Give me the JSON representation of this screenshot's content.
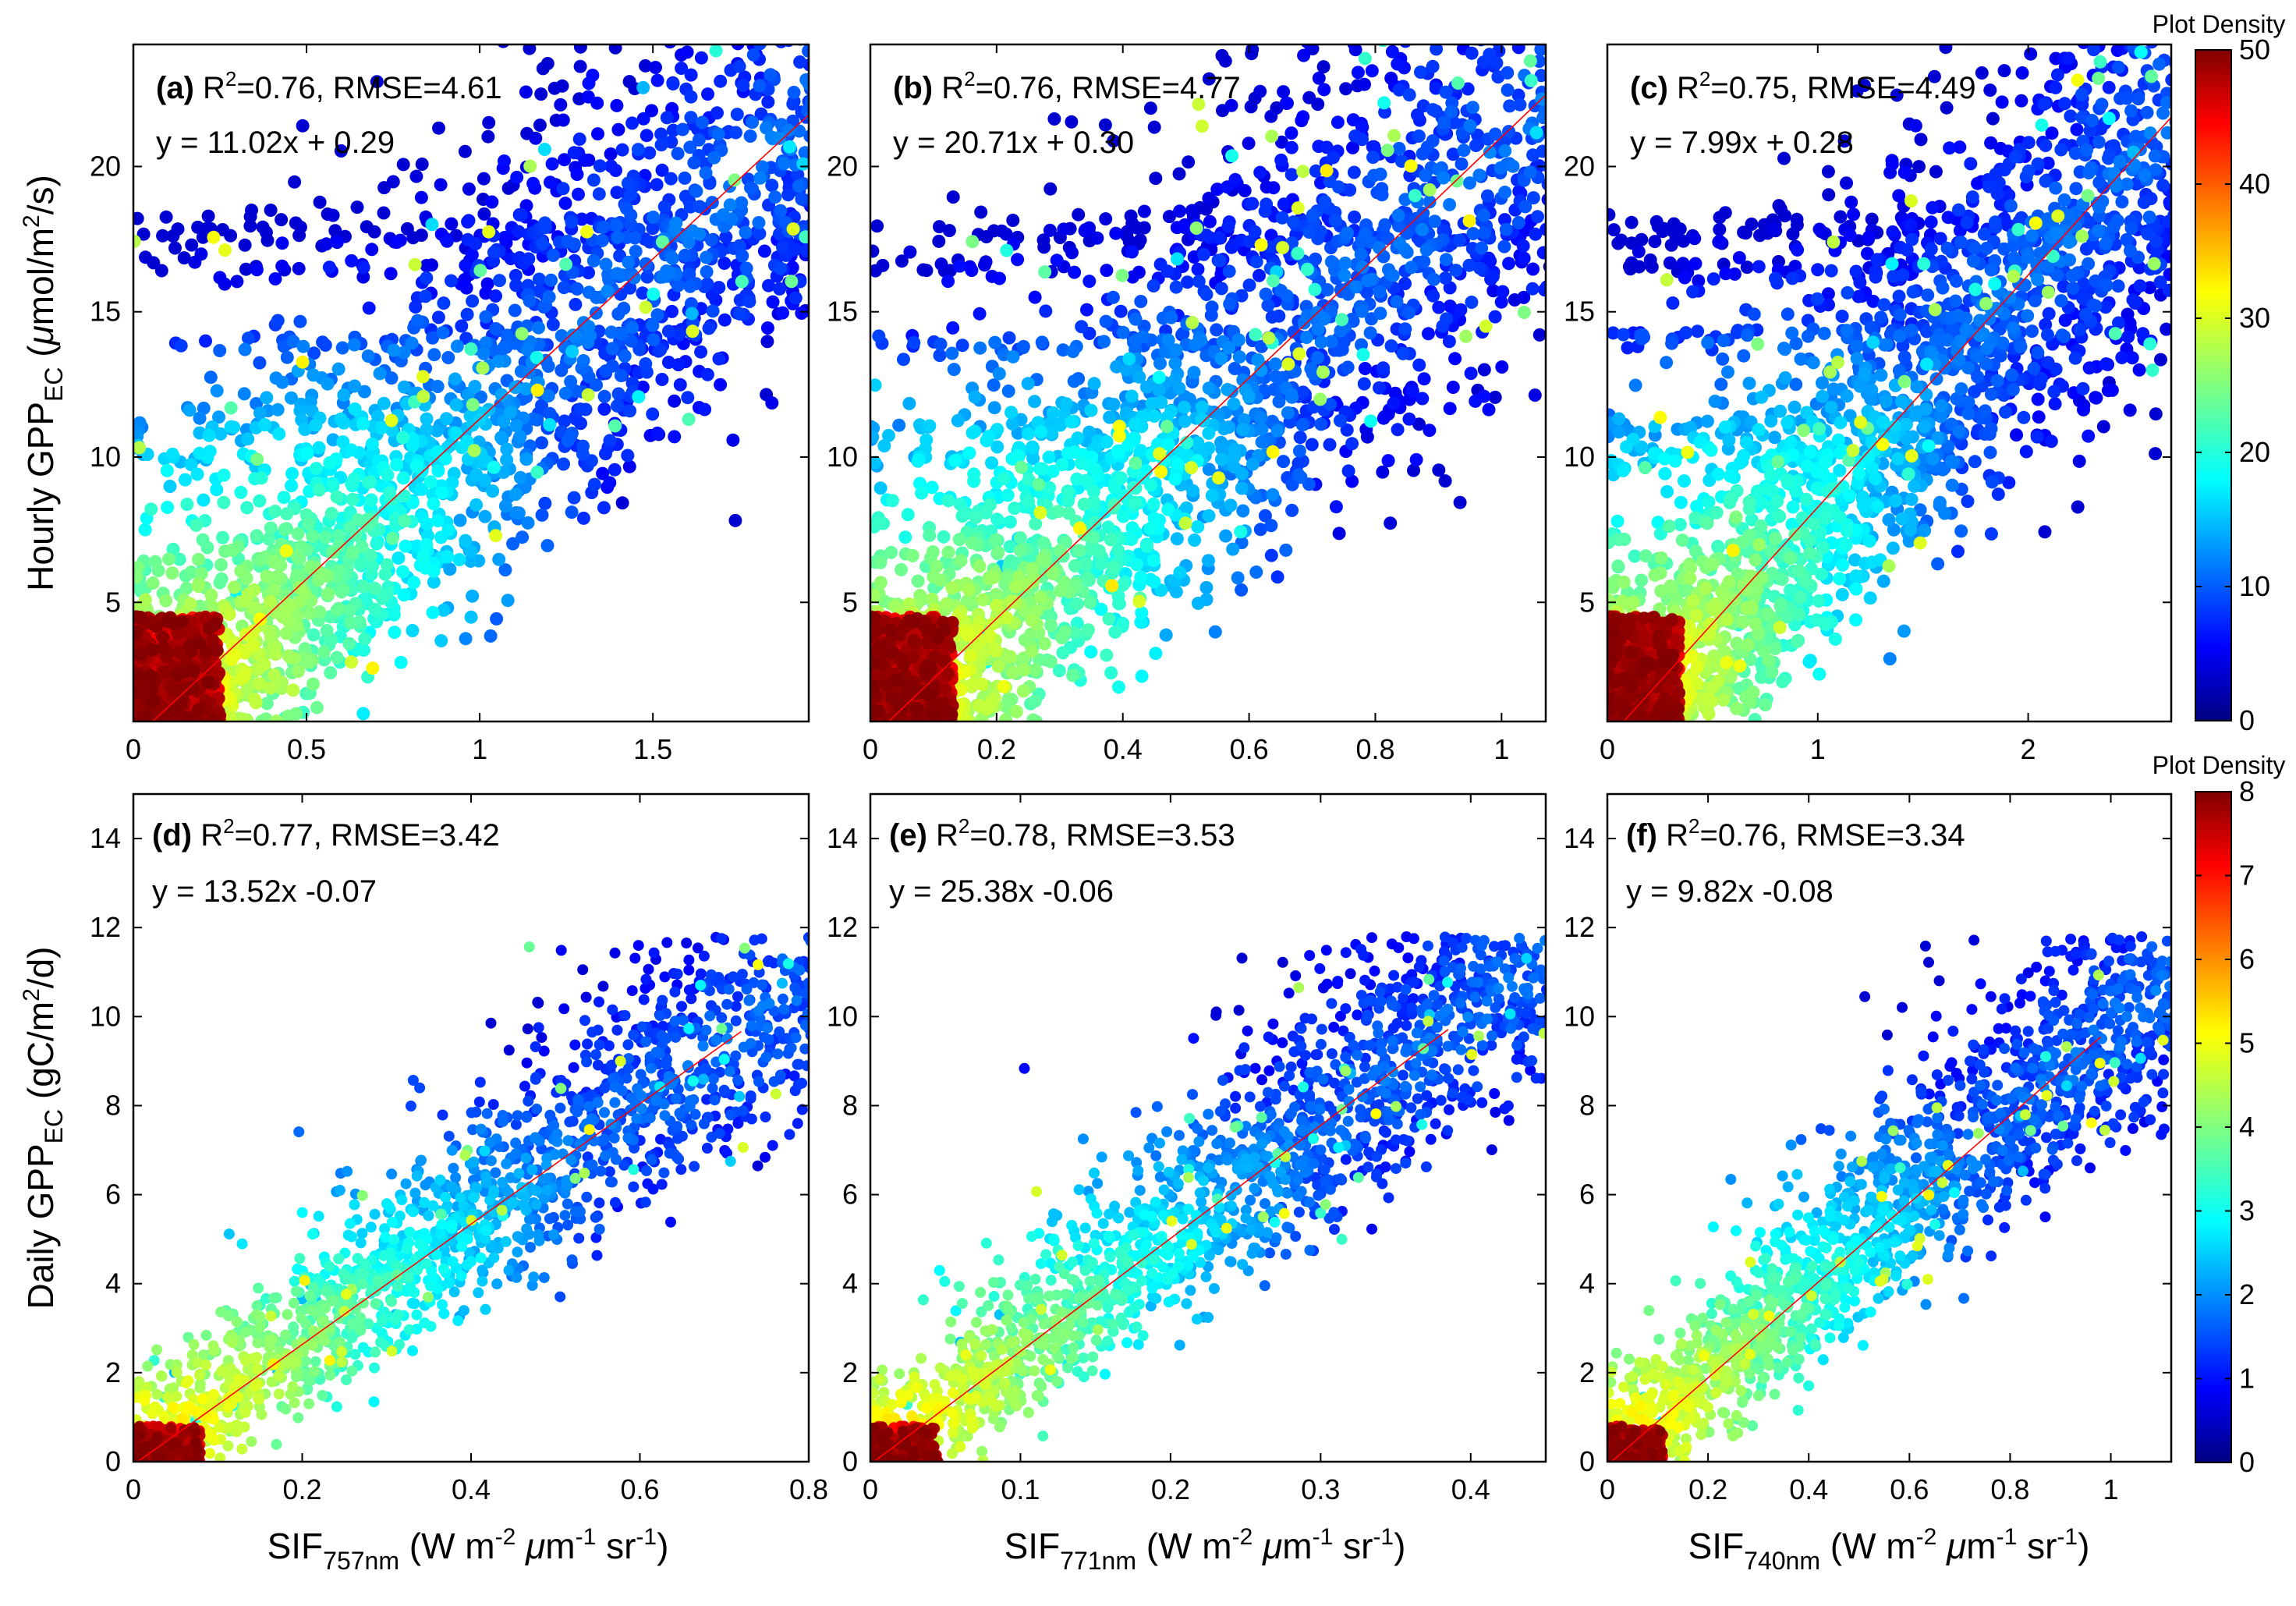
{
  "figure_labels": {
    "colorbar_title": "Plot Density",
    "y_hourly": {
      "pre": "Hourly GPP",
      "sub": "EC",
      "post1": " (",
      "mu": "μ",
      "post2": "mol/m",
      "sup": "2",
      "post3": "/s)"
    },
    "y_daily": {
      "pre": "Daily GPP",
      "sub": "EC",
      "post1": " (gC/m",
      "sup": "2",
      "post2": "/d)"
    },
    "x_labels": [
      {
        "pre": "SIF",
        "sub": "757nm",
        "a": " (W m",
        "s1": "-2",
        "b": " ",
        "mu": "μ",
        "c": "m",
        "s2": "-1",
        "d": " sr",
        "s3": "-1",
        "e": ")"
      },
      {
        "pre": "SIF",
        "sub": "771nm",
        "a": " (W m",
        "s1": "-2",
        "b": " ",
        "mu": "μ",
        "c": "m",
        "s2": "-1",
        "d": " sr",
        "s3": "-1",
        "e": ")"
      },
      {
        "pre": "SIF",
        "sub": "740nm",
        "a": " (W m",
        "s1": "-2",
        "b": " ",
        "mu": "μ",
        "c": "m",
        "s2": "-1",
        "d": " sr",
        "s3": "-1",
        "e": ")"
      }
    ]
  },
  "colorbars": [
    {
      "title": "Plot Density",
      "range": [
        0,
        50
      ],
      "ticks": [
        0,
        10,
        20,
        30,
        40,
        50
      ]
    },
    {
      "title": "Plot Density",
      "range": [
        0,
        8
      ],
      "ticks": [
        0,
        1,
        2,
        3,
        4,
        5,
        6,
        7,
        8
      ]
    }
  ],
  "colors": {
    "fit_line": "#ff0000",
    "axis": "#000000",
    "background": "#ffffff"
  },
  "chart_data": [
    {
      "type": "scatter",
      "panel": "(a)",
      "stats_r2": "R",
      "r2_sup": "2",
      "stats_rest": "=0.76, RMSE=4.61",
      "equation": "y = 11.02x + 0.29",
      "slope": 11.02,
      "intercept": 0.29,
      "xlim": [
        0,
        1.95
      ],
      "ylim": [
        0.9,
        24.2
      ],
      "xticks": [
        0,
        0.5,
        1,
        1.5
      ],
      "yticks": [
        5,
        10,
        15,
        20
      ],
      "n_points": 2500,
      "density_range": [
        0,
        50
      ],
      "x_spread": 0.55,
      "dense_core": {
        "x": [
          0,
          0.25
        ],
        "y": [
          0.9,
          4.5
        ]
      }
    },
    {
      "type": "scatter",
      "panel": "(b)",
      "stats_r2": "R",
      "r2_sup": "2",
      "stats_rest": "=0.76, RMSE=4.77",
      "equation": "y = 20.71x + 0.30",
      "slope": 20.71,
      "intercept": 0.3,
      "xlim": [
        0,
        1.07
      ],
      "ylim": [
        0.9,
        24.2
      ],
      "xticks": [
        0,
        0.2,
        0.4,
        0.6,
        0.8,
        1
      ],
      "yticks": [
        5,
        10,
        15,
        20
      ],
      "n_points": 2500,
      "density_range": [
        0,
        50
      ],
      "x_spread": 0.3,
      "dense_core": {
        "x": [
          0,
          0.13
        ],
        "y": [
          0.9,
          4.5
        ]
      }
    },
    {
      "type": "scatter",
      "panel": "(c)",
      "stats_r2": "R",
      "r2_sup": "2",
      "stats_rest": "=0.75, RMSE=4.49",
      "equation": "y = 7.99x + 0.28",
      "slope": 7.99,
      "intercept": 0.28,
      "xlim": [
        0,
        2.68
      ],
      "ylim": [
        0.9,
        24.2
      ],
      "xticks": [
        0,
        1,
        2
      ],
      "yticks": [
        5,
        10,
        15,
        20
      ],
      "n_points": 2500,
      "density_range": [
        0,
        50
      ],
      "x_spread": 0.75,
      "dense_core": {
        "x": [
          0,
          0.34
        ],
        "y": [
          0.9,
          4.5
        ]
      }
    },
    {
      "type": "scatter",
      "panel": "(d)",
      "stats_r2": "R",
      "r2_sup": "2",
      "stats_rest": "=0.77, RMSE=3.42",
      "equation": "y = 13.52x -0.07",
      "slope": 13.52,
      "intercept": -0.07,
      "xlim": [
        0,
        0.8
      ],
      "ylim": [
        0,
        15
      ],
      "xticks": [
        0,
        0.2,
        0.4,
        0.6,
        0.8
      ],
      "yticks": [
        0,
        2,
        4,
        6,
        8,
        10,
        12,
        14
      ],
      "n_points": 1800,
      "density_range": [
        0,
        8
      ],
      "x_spread": 0.12,
      "fit_x_range": [
        0.005,
        0.72
      ],
      "dense_core": {
        "x": [
          0,
          0.08
        ],
        "y": [
          0,
          0.8
        ]
      }
    },
    {
      "type": "scatter",
      "panel": "(e)",
      "stats_r2": "R",
      "r2_sup": "2",
      "stats_rest": "=0.78, RMSE=3.53",
      "equation": "y = 25.38x -0.06",
      "slope": 25.38,
      "intercept": -0.06,
      "xlim": [
        0,
        0.45
      ],
      "ylim": [
        0,
        15
      ],
      "xticks": [
        0,
        0.1,
        0.2,
        0.3,
        0.4
      ],
      "yticks": [
        0,
        2,
        4,
        6,
        8,
        10,
        12,
        14
      ],
      "n_points": 1800,
      "density_range": [
        0,
        8
      ],
      "x_spread": 0.065,
      "fit_x_range": [
        0.003,
        0.385
      ],
      "dense_core": {
        "x": [
          0,
          0.045
        ],
        "y": [
          0,
          0.8
        ]
      }
    },
    {
      "type": "scatter",
      "panel": "(f)",
      "stats_r2": "R",
      "r2_sup": "2",
      "stats_rest": "=0.76, RMSE=3.34",
      "equation": "y = 9.82x -0.08",
      "slope": 9.82,
      "intercept": -0.08,
      "xlim": [
        0,
        1.12
      ],
      "ylim": [
        0,
        15
      ],
      "xticks": [
        0,
        0.2,
        0.4,
        0.6,
        0.8,
        1
      ],
      "yticks": [
        0,
        2,
        4,
        6,
        8,
        10,
        12,
        14
      ],
      "n_points": 1800,
      "density_range": [
        0,
        8
      ],
      "x_spread": 0.17,
      "fit_x_range": [
        0.01,
        0.98
      ],
      "dense_core": {
        "x": [
          0,
          0.11
        ],
        "y": [
          0,
          0.8
        ]
      }
    }
  ]
}
